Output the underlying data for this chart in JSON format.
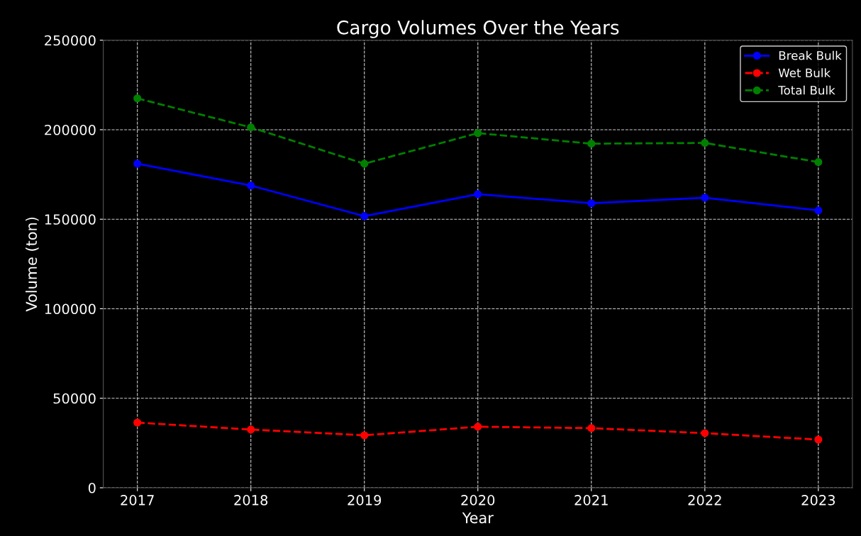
{
  "chart_data": {
    "type": "line",
    "title": "Cargo Volumes Over the Years",
    "xlabel": "Year",
    "ylabel": "Volume (ton)",
    "x": [
      2017,
      2018,
      2019,
      2020,
      2021,
      2022,
      2023
    ],
    "series": [
      {
        "name": "Break Bulk",
        "color": "#0000ff",
        "line_style": "solid",
        "values": [
          181000,
          168800,
          151700,
          164000,
          158900,
          162000,
          154900
        ]
      },
      {
        "name": "Wet Bulk",
        "color": "#ff0000",
        "line_style": "dashed",
        "values": [
          36400,
          32500,
          29300,
          34100,
          33300,
          30500,
          26900
        ]
      },
      {
        "name": "Total Bulk",
        "color": "#008000",
        "line_style": "dashed",
        "values": [
          217500,
          201300,
          181000,
          198100,
          192200,
          192600,
          181900
        ]
      }
    ],
    "xlim": [
      2016.7,
      2023.3
    ],
    "xticks": [
      2017,
      2018,
      2019,
      2020,
      2021,
      2022,
      2023
    ],
    "ylim": [
      0,
      250000
    ],
    "yticks": [
      0,
      50000,
      100000,
      150000,
      200000,
      250000
    ],
    "grid": true,
    "legend": "top right",
    "marker": "circle"
  }
}
